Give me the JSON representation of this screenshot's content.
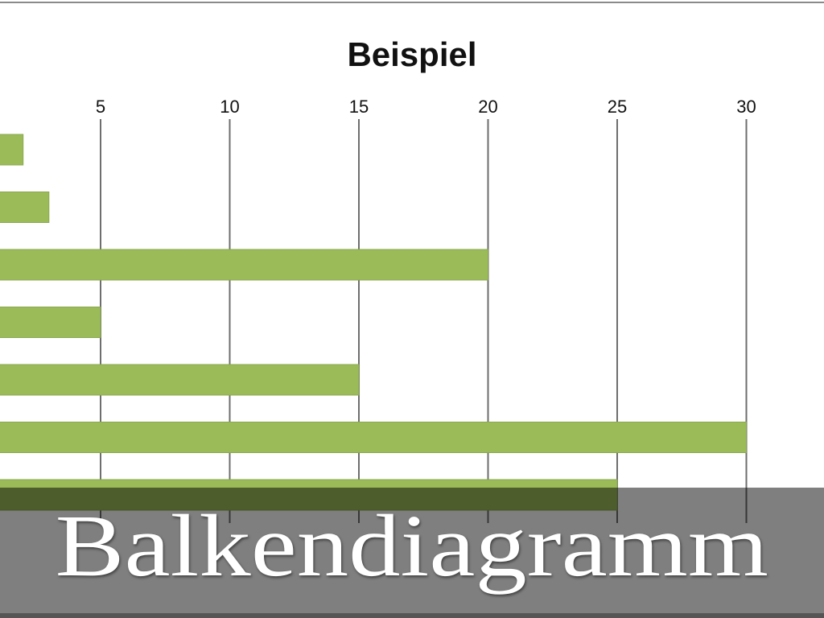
{
  "chart_data": {
    "type": "bar",
    "orientation": "horizontal",
    "title": "Beispiel",
    "values": [
      2,
      3,
      20,
      5,
      15,
      30,
      25
    ],
    "x_ticks": [
      5,
      10,
      15,
      20,
      25,
      30
    ],
    "xlim": [
      0,
      30
    ],
    "grid": "vertical",
    "bar_color": "#9bbb59"
  },
  "caption": "Balkendiagramm"
}
